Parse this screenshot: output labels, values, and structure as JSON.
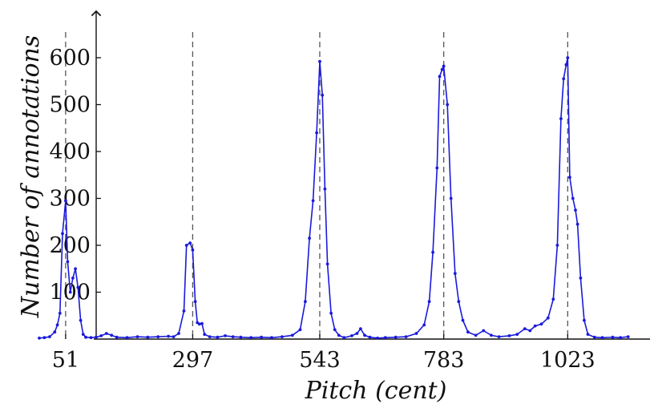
{
  "chart_data": {
    "type": "line",
    "title": "",
    "xlabel": "Pitch (cent)",
    "ylabel": "Number of annotations",
    "xlim": [
      0,
      1140
    ],
    "ylim": [
      0,
      660
    ],
    "x_ticks": [
      51,
      297,
      543,
      783,
      1023
    ],
    "y_ticks": [
      100,
      200,
      300,
      400,
      500,
      600
    ],
    "reference_lines_x": [
      51,
      297,
      543,
      783,
      1023
    ],
    "grid": false,
    "legend": "none",
    "line_color": "#1a1adb",
    "series": [
      {
        "name": "",
        "points": [
          [
            0,
            2
          ],
          [
            10,
            3
          ],
          [
            20,
            5
          ],
          [
            30,
            15
          ],
          [
            35,
            30
          ],
          [
            40,
            55
          ],
          [
            45,
            225
          ],
          [
            51,
            295
          ],
          [
            55,
            165
          ],
          [
            60,
            100
          ],
          [
            65,
            130
          ],
          [
            70,
            150
          ],
          [
            75,
            110
          ],
          [
            80,
            40
          ],
          [
            85,
            10
          ],
          [
            90,
            4
          ],
          [
            100,
            3
          ],
          [
            110,
            4
          ],
          [
            120,
            7
          ],
          [
            130,
            12
          ],
          [
            140,
            8
          ],
          [
            150,
            4
          ],
          [
            170,
            3
          ],
          [
            190,
            5
          ],
          [
            210,
            4
          ],
          [
            230,
            5
          ],
          [
            250,
            6
          ],
          [
            260,
            5
          ],
          [
            270,
            12
          ],
          [
            280,
            60
          ],
          [
            285,
            200
          ],
          [
            292,
            205
          ],
          [
            297,
            190
          ],
          [
            302,
            80
          ],
          [
            306,
            35
          ],
          [
            310,
            32
          ],
          [
            315,
            33
          ],
          [
            320,
            10
          ],
          [
            330,
            5
          ],
          [
            345,
            4
          ],
          [
            360,
            7
          ],
          [
            375,
            5
          ],
          [
            390,
            4
          ],
          [
            410,
            3
          ],
          [
            430,
            4
          ],
          [
            450,
            3
          ],
          [
            470,
            5
          ],
          [
            490,
            8
          ],
          [
            505,
            20
          ],
          [
            515,
            80
          ],
          [
            523,
            215
          ],
          [
            530,
            295
          ],
          [
            537,
            440
          ],
          [
            543,
            592
          ],
          [
            548,
            520
          ],
          [
            553,
            320
          ],
          [
            558,
            160
          ],
          [
            565,
            55
          ],
          [
            572,
            20
          ],
          [
            580,
            8
          ],
          [
            590,
            3
          ],
          [
            605,
            7
          ],
          [
            615,
            12
          ],
          [
            622,
            22
          ],
          [
            630,
            8
          ],
          [
            640,
            4
          ],
          [
            655,
            2
          ],
          [
            670,
            3
          ],
          [
            690,
            4
          ],
          [
            710,
            5
          ],
          [
            730,
            12
          ],
          [
            745,
            30
          ],
          [
            755,
            80
          ],
          [
            762,
            185
          ],
          [
            770,
            365
          ],
          [
            775,
            560
          ],
          [
            780,
            575
          ],
          [
            783,
            582
          ],
          [
            790,
            500
          ],
          [
            797,
            300
          ],
          [
            805,
            140
          ],
          [
            812,
            80
          ],
          [
            820,
            40
          ],
          [
            830,
            15
          ],
          [
            845,
            8
          ],
          [
            860,
            18
          ],
          [
            875,
            8
          ],
          [
            890,
            5
          ],
          [
            910,
            7
          ],
          [
            925,
            10
          ],
          [
            940,
            22
          ],
          [
            950,
            18
          ],
          [
            960,
            28
          ],
          [
            972,
            32
          ],
          [
            985,
            45
          ],
          [
            995,
            85
          ],
          [
            1003,
            200
          ],
          [
            1010,
            470
          ],
          [
            1015,
            555
          ],
          [
            1020,
            585
          ],
          [
            1023,
            600
          ],
          [
            1027,
            345
          ],
          [
            1033,
            300
          ],
          [
            1038,
            275
          ],
          [
            1042,
            245
          ],
          [
            1048,
            130
          ],
          [
            1055,
            40
          ],
          [
            1062,
            10
          ],
          [
            1075,
            4
          ],
          [
            1090,
            3
          ],
          [
            1110,
            4
          ],
          [
            1125,
            3
          ],
          [
            1140,
            5
          ]
        ]
      }
    ]
  }
}
